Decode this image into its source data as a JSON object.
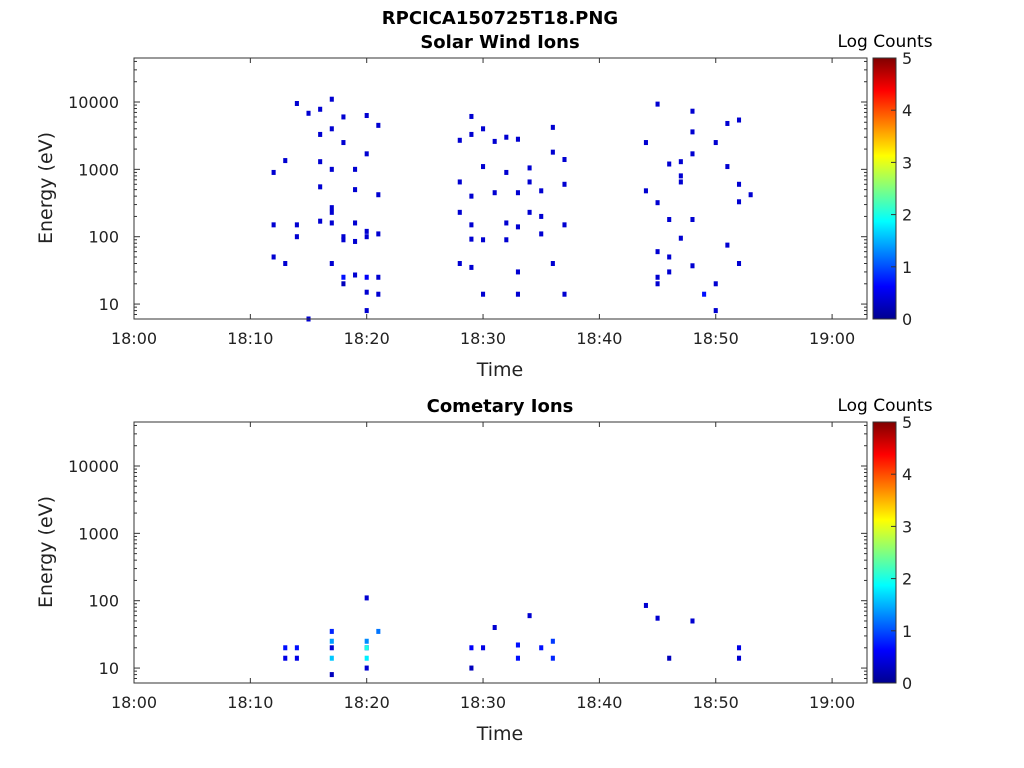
{
  "figure_title": "RPCICA150725T18.PNG",
  "chart_data": [
    {
      "type": "heatmap",
      "title": "Solar Wind Ions",
      "xlabel": "Time",
      "ylabel": "Energy (eV)",
      "y_scale": "log",
      "xlim_minutes_after_18": [
        0,
        63
      ],
      "ylim": [
        6,
        45000
      ],
      "x_ticks": [
        "18:00",
        "18:10",
        "18:20",
        "18:30",
        "18:40",
        "18:50",
        "19:00"
      ],
      "y_ticks": [
        "10",
        "100",
        "1000",
        "10000"
      ],
      "colorbar": {
        "label": "Log Counts",
        "min": 0,
        "max": 5,
        "ticks": [
          "0",
          "1",
          "2",
          "3",
          "4",
          "5"
        ],
        "colormap": "jet"
      },
      "cells": [
        {
          "t": "18:12",
          "e": 900,
          "v": 0.4
        },
        {
          "t": "18:12",
          "e": 150,
          "v": 0.4
        },
        {
          "t": "18:12",
          "e": 50,
          "v": 0.4
        },
        {
          "t": "18:13",
          "e": 1350,
          "v": 0.4
        },
        {
          "t": "18:13",
          "e": 40,
          "v": 0.4
        },
        {
          "t": "18:14",
          "e": 9500,
          "v": 0.4
        },
        {
          "t": "18:14",
          "e": 150,
          "v": 0.4
        },
        {
          "t": "18:14",
          "e": 100,
          "v": 0.4
        },
        {
          "t": "18:15",
          "e": 6800,
          "v": 0.4
        },
        {
          "t": "18:15",
          "e": 6,
          "v": 0.4
        },
        {
          "t": "18:16",
          "e": 550,
          "v": 0.4
        },
        {
          "t": "18:16",
          "e": 1300,
          "v": 0.4
        },
        {
          "t": "18:16",
          "e": 3300,
          "v": 0.4
        },
        {
          "t": "18:16",
          "e": 7800,
          "v": 0.4
        },
        {
          "t": "18:16",
          "e": 170,
          "v": 0.4
        },
        {
          "t": "18:17",
          "e": 11000,
          "v": 0.4
        },
        {
          "t": "18:17",
          "e": 4000,
          "v": 0.4
        },
        {
          "t": "18:17",
          "e": 1000,
          "v": 0.4
        },
        {
          "t": "18:17",
          "e": 230,
          "v": 0.4
        },
        {
          "t": "18:17",
          "e": 160,
          "v": 0.4
        },
        {
          "t": "18:17",
          "e": 40,
          "v": 0.4
        },
        {
          "t": "18:17",
          "e": 270,
          "v": 0.4
        },
        {
          "t": "18:18",
          "e": 25,
          "v": 0.7
        },
        {
          "t": "18:18",
          "e": 20,
          "v": 0.3
        },
        {
          "t": "18:18",
          "e": 6000,
          "v": 0.4
        },
        {
          "t": "18:18",
          "e": 2500,
          "v": 0.4
        },
        {
          "t": "18:18",
          "e": 100,
          "v": 0.4
        },
        {
          "t": "18:18",
          "e": 90,
          "v": 0.4
        },
        {
          "t": "18:19",
          "e": 1000,
          "v": 0.4
        },
        {
          "t": "18:19",
          "e": 500,
          "v": 0.4
        },
        {
          "t": "18:19",
          "e": 160,
          "v": 0.4
        },
        {
          "t": "18:19",
          "e": 85,
          "v": 0.4
        },
        {
          "t": "18:19",
          "e": 27,
          "v": 0.4
        },
        {
          "t": "18:20",
          "e": 6300,
          "v": 0.4
        },
        {
          "t": "18:20",
          "e": 1700,
          "v": 0.4
        },
        {
          "t": "18:20",
          "e": 120,
          "v": 0.4
        },
        {
          "t": "18:20",
          "e": 100,
          "v": 0.4
        },
        {
          "t": "18:20",
          "e": 25,
          "v": 0.6
        },
        {
          "t": "18:20",
          "e": 15,
          "v": 0.4
        },
        {
          "t": "18:20",
          "e": 8,
          "v": 0.4
        },
        {
          "t": "18:21",
          "e": 4500,
          "v": 0.4
        },
        {
          "t": "18:21",
          "e": 420,
          "v": 0.4
        },
        {
          "t": "18:21",
          "e": 110,
          "v": 0.4
        },
        {
          "t": "18:21",
          "e": 25,
          "v": 0.4
        },
        {
          "t": "18:21",
          "e": 14,
          "v": 0.4
        },
        {
          "t": "18:28",
          "e": 2700,
          "v": 0.4
        },
        {
          "t": "18:28",
          "e": 650,
          "v": 0.4
        },
        {
          "t": "18:28",
          "e": 230,
          "v": 0.4
        },
        {
          "t": "18:28",
          "e": 40,
          "v": 0.4
        },
        {
          "t": "18:29",
          "e": 3300,
          "v": 0.4
        },
        {
          "t": "18:29",
          "e": 6100,
          "v": 0.4
        },
        {
          "t": "18:29",
          "e": 150,
          "v": 0.4
        },
        {
          "t": "18:29",
          "e": 92,
          "v": 0.4
        },
        {
          "t": "18:29",
          "e": 35,
          "v": 0.4
        },
        {
          "t": "18:29",
          "e": 400,
          "v": 0.4
        },
        {
          "t": "18:30",
          "e": 4000,
          "v": 0.4
        },
        {
          "t": "18:30",
          "e": 1100,
          "v": 0.4
        },
        {
          "t": "18:30",
          "e": 90,
          "v": 0.4
        },
        {
          "t": "18:30",
          "e": 14,
          "v": 0.4
        },
        {
          "t": "18:31",
          "e": 450,
          "v": 0.4
        },
        {
          "t": "18:31",
          "e": 2600,
          "v": 0.4
        },
        {
          "t": "18:32",
          "e": 3000,
          "v": 0.4
        },
        {
          "t": "18:32",
          "e": 900,
          "v": 0.4
        },
        {
          "t": "18:32",
          "e": 160,
          "v": 0.4
        },
        {
          "t": "18:32",
          "e": 90,
          "v": 0.4
        },
        {
          "t": "18:33",
          "e": 2800,
          "v": 0.4
        },
        {
          "t": "18:33",
          "e": 450,
          "v": 0.4
        },
        {
          "t": "18:33",
          "e": 30,
          "v": 0.4
        },
        {
          "t": "18:33",
          "e": 14,
          "v": 0.4
        },
        {
          "t": "18:33",
          "e": 140,
          "v": 0.4
        },
        {
          "t": "18:34",
          "e": 650,
          "v": 0.4
        },
        {
          "t": "18:34",
          "e": 230,
          "v": 0.4
        },
        {
          "t": "18:34",
          "e": 1050,
          "v": 0.4
        },
        {
          "t": "18:35",
          "e": 200,
          "v": 0.4
        },
        {
          "t": "18:35",
          "e": 480,
          "v": 0.4
        },
        {
          "t": "18:35",
          "e": 110,
          "v": 0.4
        },
        {
          "t": "18:36",
          "e": 4200,
          "v": 0.4
        },
        {
          "t": "18:36",
          "e": 1800,
          "v": 0.4
        },
        {
          "t": "18:36",
          "e": 40,
          "v": 0.4
        },
        {
          "t": "18:37",
          "e": 600,
          "v": 0.4
        },
        {
          "t": "18:37",
          "e": 1400,
          "v": 0.4
        },
        {
          "t": "18:37",
          "e": 150,
          "v": 0.4
        },
        {
          "t": "18:37",
          "e": 14,
          "v": 0.4
        },
        {
          "t": "18:44",
          "e": 2500,
          "v": 0.4
        },
        {
          "t": "18:44",
          "e": 480,
          "v": 0.4
        },
        {
          "t": "18:45",
          "e": 320,
          "v": 0.4
        },
        {
          "t": "18:45",
          "e": 60,
          "v": 0.4
        },
        {
          "t": "18:45",
          "e": 25,
          "v": 0.4
        },
        {
          "t": "18:45",
          "e": 20,
          "v": 0.4
        },
        {
          "t": "18:45",
          "e": 9300,
          "v": 0.4
        },
        {
          "t": "18:46",
          "e": 1200,
          "v": 0.4
        },
        {
          "t": "18:46",
          "e": 180,
          "v": 0.4
        },
        {
          "t": "18:46",
          "e": 50,
          "v": 0.4
        },
        {
          "t": "18:46",
          "e": 30,
          "v": 0.4
        },
        {
          "t": "18:47",
          "e": 800,
          "v": 0.4
        },
        {
          "t": "18:47",
          "e": 1300,
          "v": 0.4
        },
        {
          "t": "18:47",
          "e": 95,
          "v": 0.4
        },
        {
          "t": "18:47",
          "e": 650,
          "v": 0.4
        },
        {
          "t": "18:48",
          "e": 7300,
          "v": 0.4
        },
        {
          "t": "18:48",
          "e": 3600,
          "v": 0.4
        },
        {
          "t": "18:48",
          "e": 1700,
          "v": 0.4
        },
        {
          "t": "18:48",
          "e": 180,
          "v": 0.4
        },
        {
          "t": "18:48",
          "e": 37,
          "v": 0.4
        },
        {
          "t": "18:49",
          "e": 14,
          "v": 0.7
        },
        {
          "t": "18:50",
          "e": 2500,
          "v": 0.4
        },
        {
          "t": "18:50",
          "e": 20,
          "v": 0.4
        },
        {
          "t": "18:50",
          "e": 8,
          "v": 0.4
        },
        {
          "t": "18:51",
          "e": 1100,
          "v": 0.4
        },
        {
          "t": "18:51",
          "e": 4800,
          "v": 0.4
        },
        {
          "t": "18:51",
          "e": 75,
          "v": 0.4
        },
        {
          "t": "18:52",
          "e": 600,
          "v": 0.4
        },
        {
          "t": "18:52",
          "e": 40,
          "v": 0.4
        },
        {
          "t": "18:52",
          "e": 5400,
          "v": 0.4
        },
        {
          "t": "18:52",
          "e": 330,
          "v": 0.4
        },
        {
          "t": "18:53",
          "e": 420,
          "v": 0.4
        }
      ]
    },
    {
      "type": "heatmap",
      "title": "Cometary Ions",
      "xlabel": "Time",
      "ylabel": "Energy (eV)",
      "y_scale": "log",
      "xlim_minutes_after_18": [
        0,
        63
      ],
      "ylim": [
        6,
        45000
      ],
      "x_ticks": [
        "18:00",
        "18:10",
        "18:20",
        "18:30",
        "18:40",
        "18:50",
        "19:00"
      ],
      "y_ticks": [
        "10",
        "100",
        "1000",
        "10000"
      ],
      "colorbar": {
        "label": "Log Counts",
        "min": 0,
        "max": 5,
        "ticks": [
          "0",
          "1",
          "2",
          "3",
          "4",
          "5"
        ],
        "colormap": "jet"
      },
      "cells": [
        {
          "t": "18:13",
          "e": 20,
          "v": 0.7
        },
        {
          "t": "18:13",
          "e": 14,
          "v": 0.5
        },
        {
          "t": "18:14",
          "e": 20,
          "v": 0.7
        },
        {
          "t": "18:14",
          "e": 14,
          "v": 0.5
        },
        {
          "t": "18:17",
          "e": 20,
          "v": 0.4
        },
        {
          "t": "18:17",
          "e": 8,
          "v": 0.3
        },
        {
          "t": "18:17",
          "e": 25,
          "v": 1.4
        },
        {
          "t": "18:17",
          "e": 14,
          "v": 1.6
        },
        {
          "t": "18:17",
          "e": 35,
          "v": 0.8
        },
        {
          "t": "18:20",
          "e": 110,
          "v": 0.4
        },
        {
          "t": "18:20",
          "e": 20,
          "v": 0.6
        },
        {
          "t": "18:20",
          "e": 10,
          "v": 0.4
        },
        {
          "t": "18:20",
          "e": 25,
          "v": 1.3
        },
        {
          "t": "18:20",
          "e": 20,
          "v": 2.0
        },
        {
          "t": "18:20",
          "e": 14,
          "v": 1.8
        },
        {
          "t": "18:21",
          "e": 35,
          "v": 1.2
        },
        {
          "t": "18:29",
          "e": 20,
          "v": 0.6
        },
        {
          "t": "18:29",
          "e": 10,
          "v": 0.3
        },
        {
          "t": "18:30",
          "e": 20,
          "v": 0.5
        },
        {
          "t": "18:31",
          "e": 40,
          "v": 0.4
        },
        {
          "t": "18:33",
          "e": 22,
          "v": 0.7
        },
        {
          "t": "18:33",
          "e": 14,
          "v": 0.7
        },
        {
          "t": "18:34",
          "e": 60,
          "v": 0.4
        },
        {
          "t": "18:35",
          "e": 20,
          "v": 0.7
        },
        {
          "t": "18:36",
          "e": 25,
          "v": 0.9
        },
        {
          "t": "18:36",
          "e": 14,
          "v": 0.8
        },
        {
          "t": "18:44",
          "e": 85,
          "v": 0.4
        },
        {
          "t": "18:45",
          "e": 55,
          "v": 0.4
        },
        {
          "t": "18:46",
          "e": 14,
          "v": 0.3
        },
        {
          "t": "18:48",
          "e": 50,
          "v": 0.4
        },
        {
          "t": "18:52",
          "e": 20,
          "v": 0.5
        },
        {
          "t": "18:52",
          "e": 14,
          "v": 0.4
        }
      ]
    }
  ]
}
